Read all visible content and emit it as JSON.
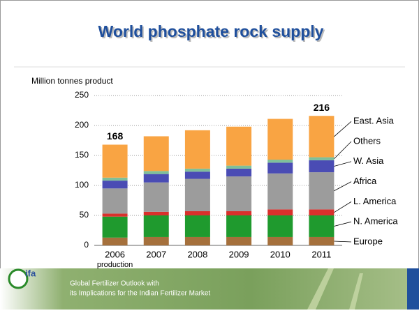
{
  "chart_data": {
    "type": "stacked_bar",
    "title": "World phosphate rock supply",
    "y_label": "Million tonnes product",
    "categories": [
      "2006",
      "2007",
      "2008",
      "2009",
      "2010",
      "2011"
    ],
    "category_notes": [
      "production",
      null,
      null,
      null,
      null,
      null
    ],
    "series": [
      {
        "name": "Europe",
        "color": "#a5703c",
        "values": [
          13,
          14,
          14,
          14,
          14,
          14
        ]
      },
      {
        "name": "N. America",
        "color": "#1f9a2e",
        "values": [
          35,
          36,
          36,
          36,
          36,
          36
        ]
      },
      {
        "name": "L. America",
        "color": "#d9302c",
        "values": [
          5,
          6,
          7,
          7,
          10,
          10
        ]
      },
      {
        "name": "Africa",
        "color": "#9c9c9c",
        "values": [
          42,
          49,
          54,
          58,
          60,
          62
        ]
      },
      {
        "name": "W. Asia",
        "color": "#4a4cb4",
        "values": [
          13,
          14,
          12,
          13,
          18,
          20
        ]
      },
      {
        "name": "Others",
        "color": "#7fbf9a",
        "values": [
          5,
          5,
          5,
          5,
          5,
          5
        ]
      },
      {
        "name": "East. Asia",
        "color": "#f9a443",
        "values": [
          55,
          58,
          64,
          65,
          68,
          69
        ]
      }
    ],
    "total_labels": [
      168,
      null,
      null,
      null,
      null,
      216
    ],
    "ylim": [
      0,
      250
    ],
    "yticks": [
      0,
      50,
      100,
      150,
      200,
      250
    ],
    "grid": true
  },
  "footer": {
    "logo": "ifa",
    "lines": [
      "Global Fertilizer Outlook with",
      "its Implications for the Indian Fertilizer Market"
    ]
  }
}
